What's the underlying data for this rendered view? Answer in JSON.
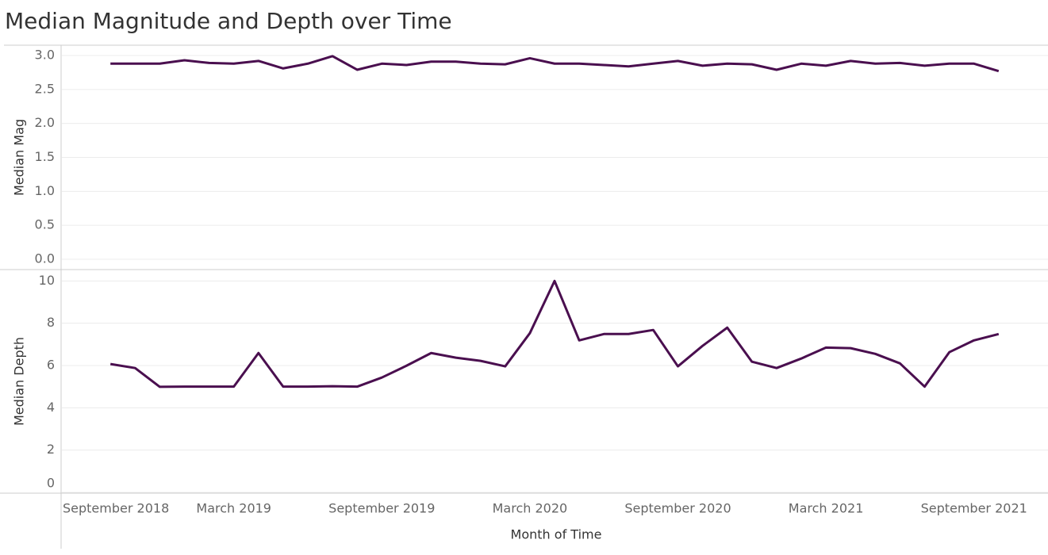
{
  "chart_data": {
    "type": "line",
    "title": "Median Magnitude and Depth over Time",
    "xlabel": "Month of Time",
    "x": [
      "2018-10",
      "2018-11",
      "2018-12",
      "2019-01",
      "2019-02",
      "2019-03",
      "2019-04",
      "2019-05",
      "2019-06",
      "2019-07",
      "2019-08",
      "2019-09",
      "2019-10",
      "2019-11",
      "2019-12",
      "2020-01",
      "2020-02",
      "2020-03",
      "2020-04",
      "2020-05",
      "2020-06",
      "2020-07",
      "2020-08",
      "2020-09",
      "2020-10",
      "2020-11",
      "2020-12",
      "2021-01",
      "2021-02",
      "2021-03",
      "2021-04",
      "2021-05",
      "2021-06",
      "2021-07",
      "2021-08",
      "2021-09",
      "2021-10"
    ],
    "xlim": [
      "2018-08",
      "2021-12"
    ],
    "xticks": [
      {
        "value": "2018-09",
        "label": "September 2018"
      },
      {
        "value": "2019-03",
        "label": "March 2019"
      },
      {
        "value": "2019-09",
        "label": "September 2019"
      },
      {
        "value": "2020-03",
        "label": "March 2020"
      },
      {
        "value": "2020-09",
        "label": "September 2020"
      },
      {
        "value": "2021-03",
        "label": "March 2021"
      },
      {
        "value": "2021-09",
        "label": "September 2021"
      }
    ],
    "grid": true,
    "panels": [
      {
        "ylabel": "Median Mag",
        "color": "#4a0f4f",
        "ylim": [
          -0.14,
          3.14
        ],
        "yticks": [
          {
            "value": 0,
            "label": "0.0"
          },
          0.5,
          {
            "value": 1,
            "label": "1.0"
          },
          1.5,
          {
            "value": 2,
            "label": "2.0"
          },
          2.5,
          {
            "value": 3,
            "label": "3.0"
          }
        ],
        "values": [
          2.88,
          2.88,
          2.88,
          2.93,
          2.89,
          2.88,
          2.92,
          2.81,
          2.88,
          2.99,
          2.79,
          2.88,
          2.86,
          2.91,
          2.91,
          2.88,
          2.87,
          2.96,
          2.88,
          2.88,
          2.86,
          2.84,
          2.88,
          2.92,
          2.85,
          2.88,
          2.87,
          2.79,
          2.88,
          2.85,
          2.92,
          2.88,
          2.89,
          2.85,
          2.88,
          2.88,
          2.77
        ]
      },
      {
        "ylabel": "Median Depth",
        "color": "#4a0f4f",
        "ylim": [
          0,
          10.5
        ],
        "yticks": [
          0,
          2,
          4,
          6,
          8,
          10
        ],
        "values": [
          6.07,
          5.88,
          4.99,
          5.0,
          5.0,
          5.0,
          6.59,
          5.0,
          5.0,
          5.02,
          5.0,
          5.43,
          5.99,
          6.59,
          6.37,
          6.22,
          5.96,
          7.53,
          10.0,
          7.19,
          7.49,
          7.49,
          7.68,
          5.96,
          6.93,
          7.79,
          6.18,
          5.88,
          6.33,
          6.85,
          6.82,
          6.55,
          6.1,
          5.0,
          6.63,
          7.19,
          7.49
        ]
      }
    ]
  }
}
